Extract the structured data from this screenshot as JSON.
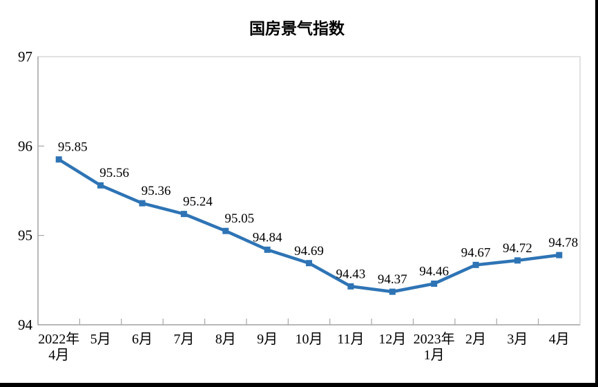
{
  "chart_data": {
    "type": "line",
    "title": "国房景气指数",
    "series": [
      {
        "name": "国房景气指数",
        "values": [
          95.85,
          95.56,
          95.36,
          95.24,
          95.05,
          94.84,
          94.69,
          94.43,
          94.37,
          94.46,
          94.67,
          94.72,
          94.78
        ]
      }
    ],
    "categories": [
      [
        "2022年",
        "4月"
      ],
      [
        "5月"
      ],
      [
        "6月"
      ],
      [
        "7月"
      ],
      [
        "8月"
      ],
      [
        "9月"
      ],
      [
        "10月"
      ],
      [
        "11月"
      ],
      [
        "12月"
      ],
      [
        "2023年",
        "1月"
      ],
      [
        "2月"
      ],
      [
        "3月"
      ],
      [
        "4月"
      ]
    ],
    "values": [
      95.85,
      95.56,
      95.36,
      95.24,
      95.05,
      94.84,
      94.69,
      94.43,
      94.37,
      94.46,
      94.67,
      94.72,
      94.78
    ],
    "ylim": [
      94,
      97
    ],
    "y_ticks": [
      94,
      95,
      96,
      97
    ],
    "xlabel": "",
    "ylabel": "",
    "grid": false,
    "legend": "none",
    "marker_shape": "square",
    "colors": {
      "line": "#2E74B5",
      "marker": "#2E74B5",
      "text": "#000000",
      "axis": "#A6A6A6",
      "plot_border": "#D9D9D9",
      "page_edge": "#000000"
    }
  }
}
